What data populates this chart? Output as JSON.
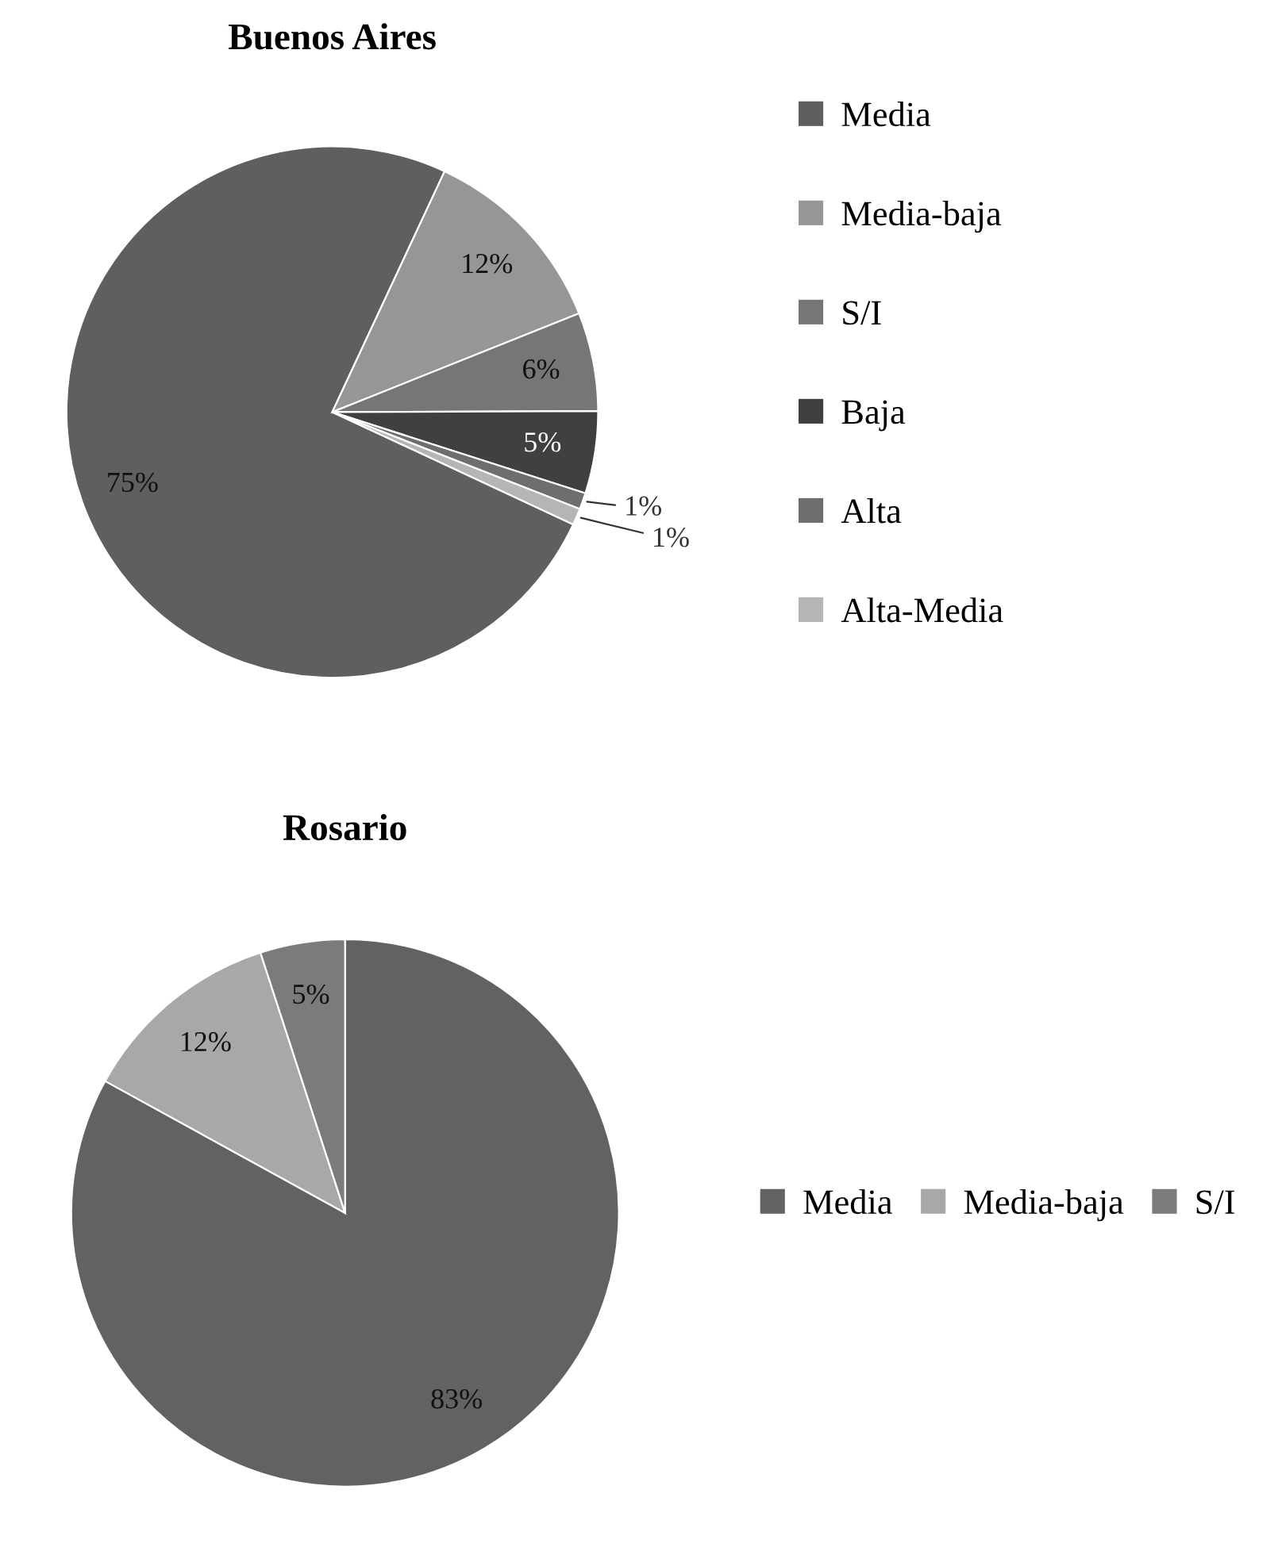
{
  "chart_data": [
    {
      "type": "pie",
      "title": "Buenos Aires",
      "categories": [
        "Media",
        "Media-baja",
        "S/I",
        "Baja",
        "Alta",
        "Alta-Media"
      ],
      "values": [
        75,
        12,
        6,
        5,
        1,
        1
      ],
      "value_labels": [
        "75%",
        "12%",
        "6%",
        "5%",
        "1%",
        "1%"
      ],
      "colors": [
        "#5f5f5f",
        "#969696",
        "#767676",
        "#404040",
        "#6e6e6e",
        "#b5b5b5"
      ],
      "legend": "right"
    },
    {
      "type": "pie",
      "title": "Rosario",
      "categories": [
        "Media",
        "Media-baja",
        "S/I"
      ],
      "values": [
        83,
        12,
        5
      ],
      "value_labels": [
        "83%",
        "12%",
        "5%"
      ],
      "colors": [
        "#626262",
        "#a8a8a8",
        "#7b7b7b"
      ],
      "legend": "right"
    }
  ]
}
